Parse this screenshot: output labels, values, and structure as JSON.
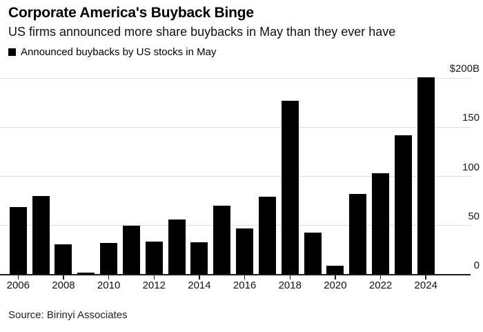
{
  "header": {
    "title": "Corporate America's Buyback Binge",
    "subtitle": "US firms announced more share buybacks in May than they ever have"
  },
  "legend": {
    "label": "Announced buybacks by US stocks in May",
    "swatch_color": "#000000"
  },
  "source_note": "Source: Birinyi Associates",
  "colors": {
    "bar": "#000000",
    "gridline": "#dcdcdc",
    "axis": "#1a1a1a",
    "text": "#000000"
  },
  "chart_data": {
    "type": "bar",
    "title": "Corporate America's Buyback Binge",
    "subtitle": "US firms announced more share buybacks in May than they ever have",
    "series_label": "Announced buybacks by US stocks in May",
    "unit": "billions of US dollars",
    "categories": [
      "2006",
      "2007",
      "2008",
      "2009",
      "2010",
      "2011",
      "2012",
      "2013",
      "2014",
      "2015",
      "2016",
      "2017",
      "2018",
      "2019",
      "2020",
      "2021",
      "2022",
      "2023",
      "2024"
    ],
    "values": [
      69,
      80,
      31,
      2,
      32,
      50,
      34,
      56,
      33,
      70,
      47,
      79,
      177,
      43,
      9,
      82,
      103,
      142,
      201
    ],
    "ylim": [
      0,
      200
    ],
    "yticks": [
      0,
      50,
      100,
      150,
      200
    ],
    "ytick_labels": [
      "0",
      "50",
      "100",
      "150",
      "$200B"
    ],
    "xtick_labels": [
      "2006",
      "2008",
      "2010",
      "2012",
      "2014",
      "2016",
      "2018",
      "2020",
      "2022",
      "2024"
    ],
    "axis_side": "right",
    "grid": true,
    "bar_color": "#000000",
    "source": "Source: Birinyi Associates"
  }
}
